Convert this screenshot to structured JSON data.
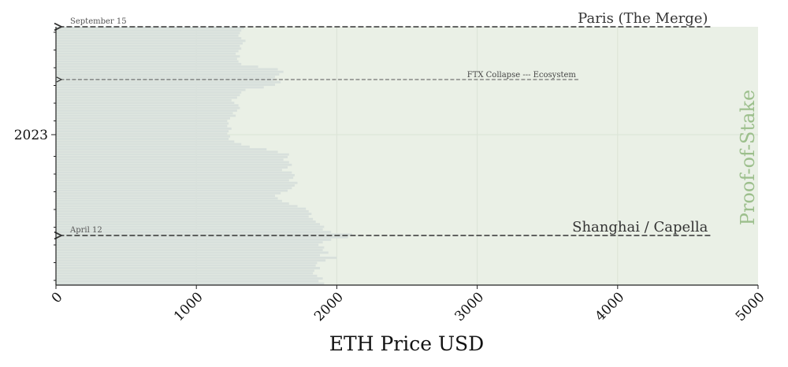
{
  "chart_data": {
    "type": "bar",
    "orientation": "horizontal",
    "xlabel": "ETH Price USD",
    "xlim": [
      0,
      5000
    ],
    "x_ticks": [
      0,
      1000,
      2000,
      3000,
      4000,
      5000
    ],
    "y_tick_label": "2023",
    "era": {
      "label": "Proof-of-Stake",
      "color": "#9cbf8c",
      "background": "#eaf0e6"
    },
    "bar_color": "#d8e0dc",
    "events": [
      {
        "name": "Paris (The Merge)",
        "date": "September 15",
        "price": 4660,
        "size": "big"
      },
      {
        "name": "FTX Collapse --- Ecosystem",
        "date": "",
        "price": 3720,
        "size": "small"
      },
      {
        "name": "Shanghai / Capella",
        "date": "April 12",
        "price": 4660,
        "size": "big"
      }
    ],
    "series": [
      {
        "values": [
          1340,
          1320,
          1310,
          1300,
          1320,
          1350,
          1330,
          1310,
          1320,
          1300,
          1280,
          1310,
          1290,
          1300,
          1320,
          1440,
          1580,
          1620,
          1590,
          1560,
          1550,
          1600,
          1560,
          1480,
          1350,
          1320,
          1310,
          1290,
          1250,
          1270,
          1300,
          1310,
          1290,
          1260,
          1280,
          1240,
          1220,
          1230,
          1220,
          1250,
          1230,
          1220,
          1240,
          1230,
          1270,
          1320,
          1380,
          1500,
          1580,
          1660,
          1650,
          1620,
          1660,
          1680,
          1650,
          1610,
          1680,
          1700,
          1690,
          1660,
          1720,
          1700,
          1680,
          1650,
          1600,
          1560,
          1580,
          1610,
          1660,
          1720,
          1780,
          1800,
          1820,
          1800,
          1830,
          1850,
          1880,
          1910,
          1900,
          1960,
          2110,
          2080,
          1960,
          1900,
          1870,
          1910,
          1900,
          1940,
          1880,
          2000,
          1920,
          1860,
          1850,
          1880,
          1840,
          1830,
          1860,
          1900,
          1870,
          1910
        ]
      }
    ]
  }
}
